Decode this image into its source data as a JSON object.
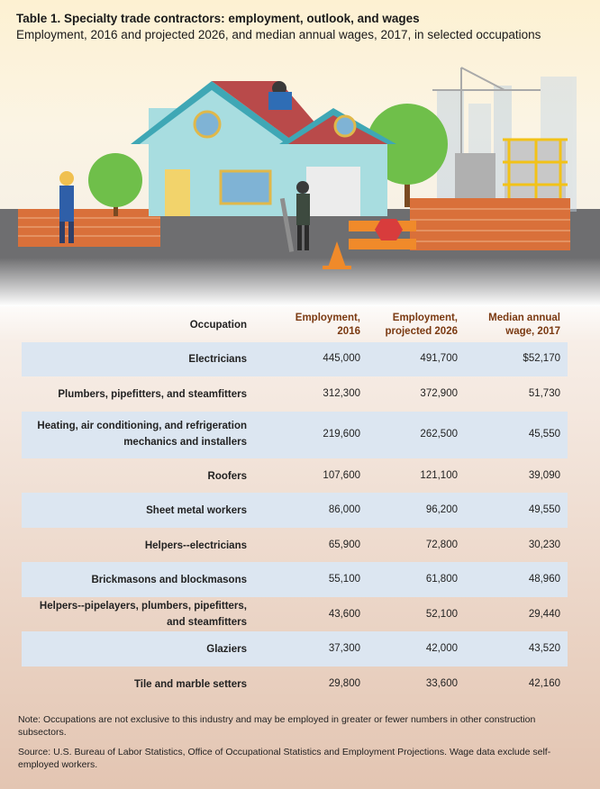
{
  "header": {
    "title": "Table 1. Specialty trade contractors: employment, outlook, and wages",
    "subtitle": "Employment, 2016 and projected 2026, and median annual wages, 2017, in selected occupations"
  },
  "table": {
    "columns": [
      "Occupation",
      "Employment, 2016",
      "Employment, projected 2026",
      "Median annual wage, 2017"
    ],
    "column_lines": [
      [
        "Occupation"
      ],
      [
        "Employment,",
        "2016"
      ],
      [
        "Employment,",
        "projected 2026"
      ],
      [
        "Median annual",
        "wage, 2017"
      ]
    ],
    "rows": [
      {
        "occupation": "Electricians",
        "occupation_lines": [
          "Electricians"
        ],
        "emp_2016": "445,000",
        "emp_2026": "491,700",
        "wage": "$52,170"
      },
      {
        "occupation": "Plumbers, pipefitters, and steamfitters",
        "occupation_lines": [
          "Plumbers, pipefitters, and steamfitters"
        ],
        "emp_2016": "312,300",
        "emp_2026": "372,900",
        "wage": "51,730"
      },
      {
        "occupation": "Heating, air conditioning, and refrigeration mechanics and installers",
        "occupation_lines": [
          "Heating, air conditioning, and refrigeration",
          "mechanics and installers"
        ],
        "emp_2016": "219,600",
        "emp_2026": "262,500",
        "wage": "45,550"
      },
      {
        "occupation": "Roofers",
        "occupation_lines": [
          "Roofers"
        ],
        "emp_2016": "107,600",
        "emp_2026": "121,100",
        "wage": "39,090"
      },
      {
        "occupation": "Sheet metal workers",
        "occupation_lines": [
          "Sheet metal workers"
        ],
        "emp_2016": "86,000",
        "emp_2026": "96,200",
        "wage": "49,550"
      },
      {
        "occupation": "Helpers--electricians",
        "occupation_lines": [
          "Helpers--electricians"
        ],
        "emp_2016": "65,900",
        "emp_2026": "72,800",
        "wage": "30,230"
      },
      {
        "occupation": "Brickmasons and blockmasons",
        "occupation_lines": [
          "Brickmasons and blockmasons"
        ],
        "emp_2016": "55,100",
        "emp_2026": "61,800",
        "wage": "48,960"
      },
      {
        "occupation": "Helpers--pipelayers, plumbers, pipefitters, and steamfitters",
        "occupation_lines": [
          "Helpers--pipelayers, plumbers, pipefitters,",
          "and steamfitters"
        ],
        "emp_2016": "43,600",
        "emp_2026": "52,100",
        "wage": "29,440"
      },
      {
        "occupation": "Glaziers",
        "occupation_lines": [
          "Glaziers"
        ],
        "emp_2016": "37,300",
        "emp_2026": "42,000",
        "wage": "43,520"
      },
      {
        "occupation": "Tile and marble setters",
        "occupation_lines": [
          "Tile and marble setters"
        ],
        "emp_2016": "29,800",
        "emp_2026": "33,600",
        "wage": "42,160"
      }
    ]
  },
  "notes": {
    "note": "Note: Occupations are not exclusive to this industry and may be employed in greater or fewer numbers in other construction subsectors.",
    "source": "Source: U.S. Bureau of Labor Statistics, Office of Occupational Statistics and Employment Projections. Wage data exclude self-employed workers."
  },
  "colors": {
    "header_text": "#7b3a12",
    "row_shade": "#dce6f1",
    "brick": "#d9703a",
    "house_wall": "#a8dde0",
    "roof": "#b94a4a",
    "tree": "#6fbf4a"
  },
  "illustration": {
    "icons": [
      "house-icon",
      "roofer-worker-icon",
      "female-worker-icon",
      "plumber-worker-icon",
      "brick-wall-icon",
      "tree-icon",
      "crane-icon",
      "traffic-cone-icon",
      "road-barrier-icon",
      "scaffold-building-icon"
    ]
  }
}
